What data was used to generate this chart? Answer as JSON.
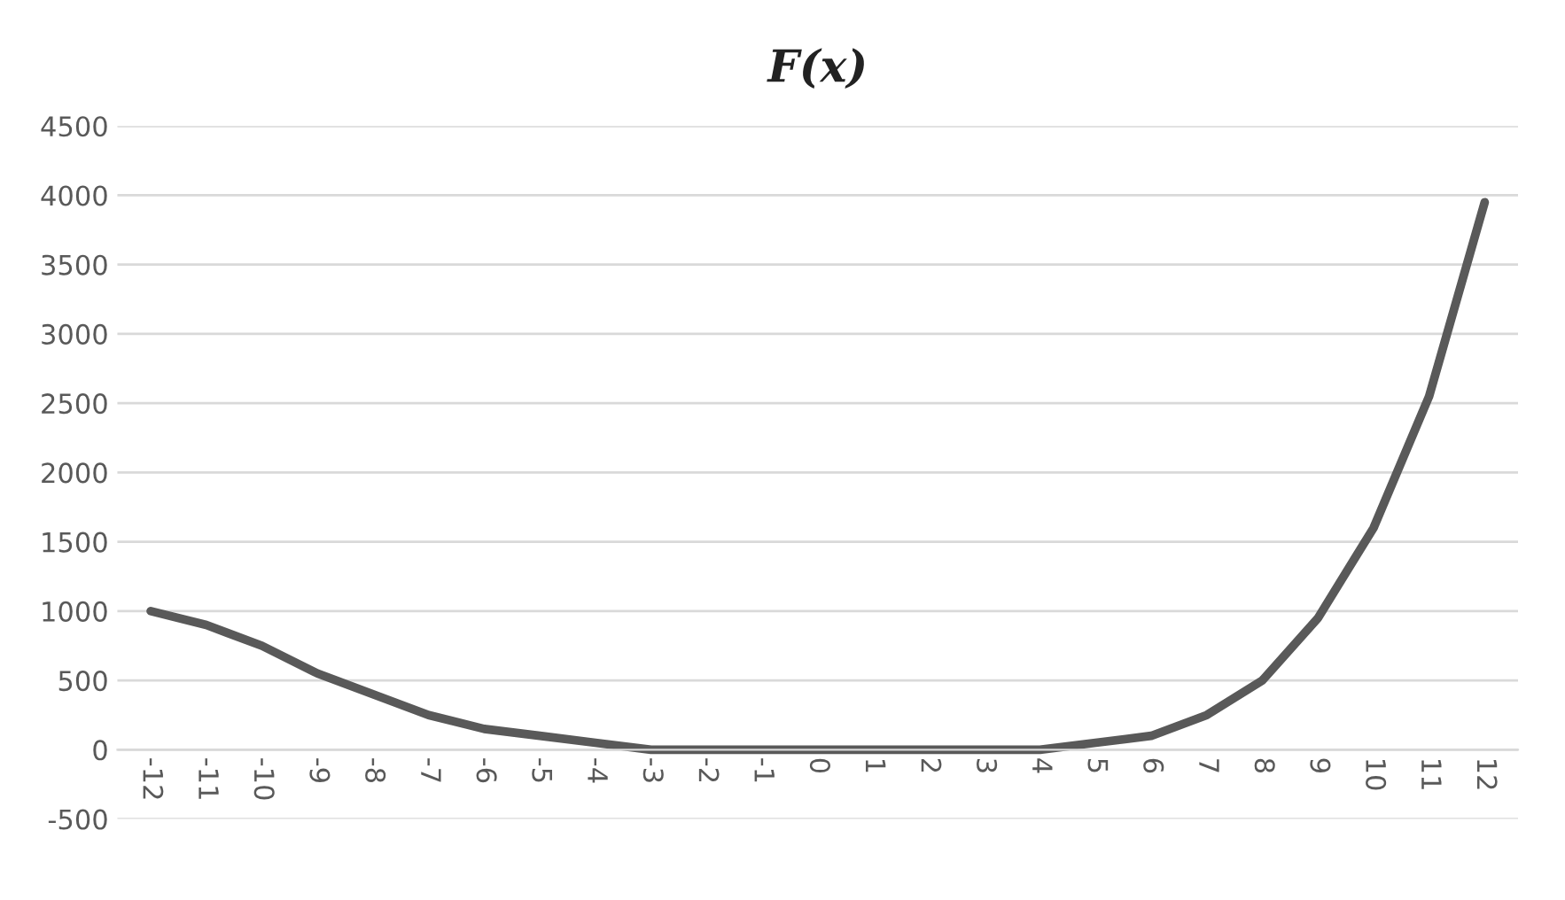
{
  "chart_data": {
    "type": "line",
    "title": "F(x)",
    "categories": [
      "-12",
      "-11",
      "-10",
      "-9",
      "-8",
      "-7",
      "-6",
      "-5",
      "-4",
      "-3",
      "-2",
      "-1",
      "0",
      "1",
      "2",
      "3",
      "4",
      "5",
      "6",
      "7",
      "8",
      "9",
      "10",
      "11",
      "12"
    ],
    "series": [
      {
        "color": "#595959",
        "values": [
          1000,
          900,
          750,
          550,
          400,
          250,
          150,
          100,
          50,
          0,
          0,
          0,
          0,
          0,
          0,
          0,
          0,
          50,
          100,
          250,
          500,
          950,
          1600,
          2550,
          3950
        ]
      }
    ],
    "ylim": [
      -500,
      4500
    ],
    "yticks": [
      -500,
      0,
      500,
      1000,
      1500,
      2000,
      2500,
      3000,
      3500,
      4000,
      4500
    ],
    "grid": "y",
    "marker": "none",
    "line_style": "solid"
  }
}
